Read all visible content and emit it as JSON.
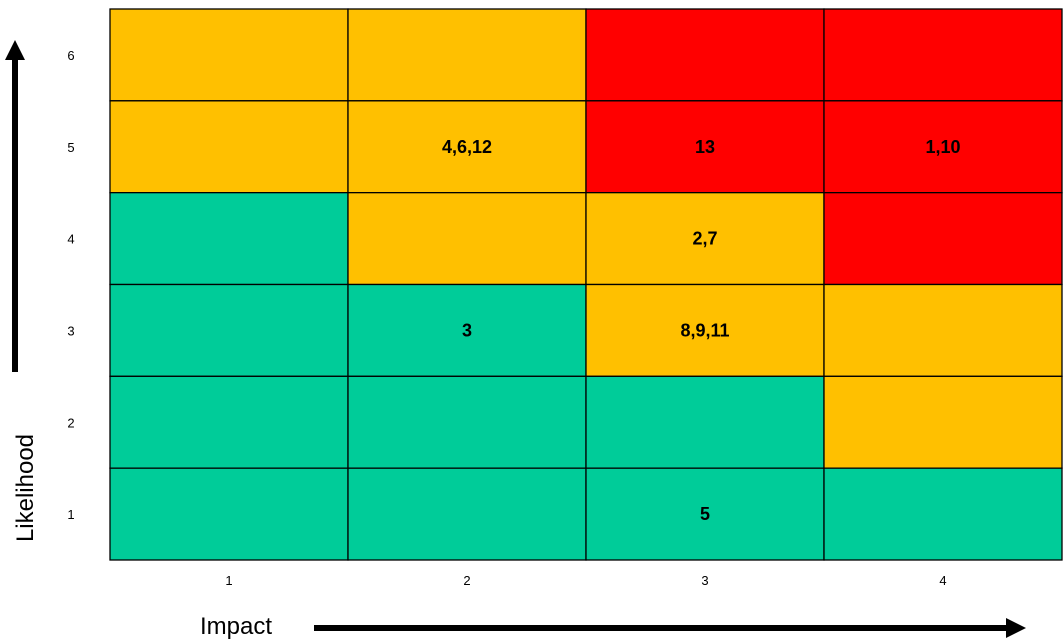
{
  "chart_data": {
    "type": "heatmap",
    "title": "",
    "xlabel": "Impact",
    "ylabel": "Likelihood",
    "x_categories": [
      "1",
      "2",
      "3",
      "4"
    ],
    "y_categories": [
      "1",
      "2",
      "3",
      "4",
      "5",
      "6"
    ],
    "colors": {
      "low": "#00CC99",
      "medium": "#FFC000",
      "high": "#FF0000"
    },
    "cells": [
      {
        "impact": "1",
        "likelihood": "6",
        "level": "medium",
        "label": ""
      },
      {
        "impact": "2",
        "likelihood": "6",
        "level": "medium",
        "label": ""
      },
      {
        "impact": "3",
        "likelihood": "6",
        "level": "high",
        "label": ""
      },
      {
        "impact": "4",
        "likelihood": "6",
        "level": "high",
        "label": ""
      },
      {
        "impact": "1",
        "likelihood": "5",
        "level": "medium",
        "label": ""
      },
      {
        "impact": "2",
        "likelihood": "5",
        "level": "medium",
        "label": "4,6,12"
      },
      {
        "impact": "3",
        "likelihood": "5",
        "level": "high",
        "label": "13"
      },
      {
        "impact": "4",
        "likelihood": "5",
        "level": "high",
        "label": "1,10"
      },
      {
        "impact": "1",
        "likelihood": "4",
        "level": "low",
        "label": ""
      },
      {
        "impact": "2",
        "likelihood": "4",
        "level": "medium",
        "label": ""
      },
      {
        "impact": "3",
        "likelihood": "4",
        "level": "medium",
        "label": "2,7"
      },
      {
        "impact": "4",
        "likelihood": "4",
        "level": "high",
        "label": ""
      },
      {
        "impact": "1",
        "likelihood": "3",
        "level": "low",
        "label": ""
      },
      {
        "impact": "2",
        "likelihood": "3",
        "level": "low",
        "label": "3"
      },
      {
        "impact": "3",
        "likelihood": "3",
        "level": "medium",
        "label": "8,9,11"
      },
      {
        "impact": "4",
        "likelihood": "3",
        "level": "medium",
        "label": ""
      },
      {
        "impact": "1",
        "likelihood": "2",
        "level": "low",
        "label": ""
      },
      {
        "impact": "2",
        "likelihood": "2",
        "level": "low",
        "label": ""
      },
      {
        "impact": "3",
        "likelihood": "2",
        "level": "low",
        "label": ""
      },
      {
        "impact": "4",
        "likelihood": "2",
        "level": "medium",
        "label": ""
      },
      {
        "impact": "1",
        "likelihood": "1",
        "level": "low",
        "label": ""
      },
      {
        "impact": "2",
        "likelihood": "1",
        "level": "low",
        "label": ""
      },
      {
        "impact": "3",
        "likelihood": "1",
        "level": "low",
        "label": "5"
      },
      {
        "impact": "4",
        "likelihood": "1",
        "level": "low",
        "label": ""
      }
    ]
  }
}
